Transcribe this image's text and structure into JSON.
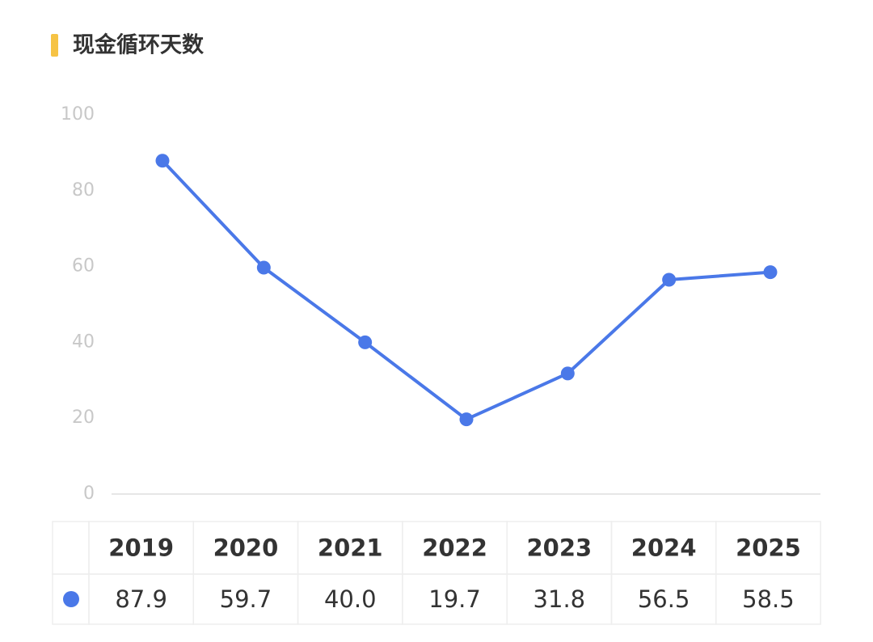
{
  "chart_data": {
    "type": "line",
    "title": "现金循环天数",
    "categories": [
      "2019",
      "2020",
      "2021",
      "2022",
      "2023",
      "2024",
      "2025"
    ],
    "values": [
      87.9,
      59.7,
      40.0,
      19.7,
      31.8,
      56.5,
      58.5
    ],
    "value_labels": [
      "87.9",
      "59.7",
      "40.0",
      "19.7",
      "31.8",
      "56.5",
      "58.5"
    ],
    "color": "#4a78e8",
    "ylim": [
      0,
      100
    ],
    "yticks": [
      0,
      20,
      40,
      60,
      80,
      100
    ]
  }
}
